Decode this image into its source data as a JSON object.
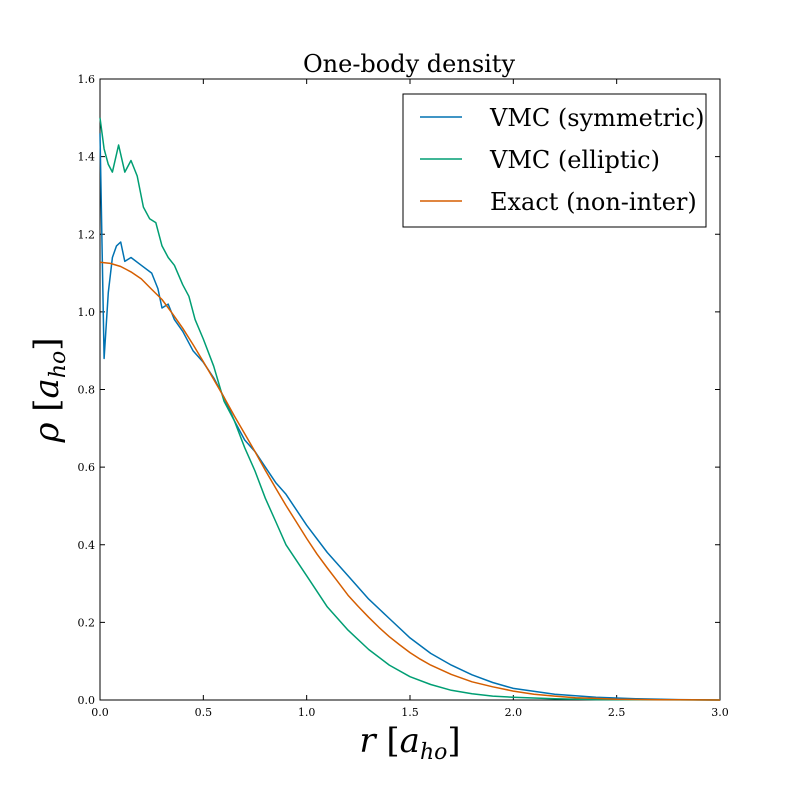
{
  "chart_data": {
    "type": "line",
    "title": "One-body density",
    "xlabel": "r [a_ho]",
    "ylabel": "ρ [a_ho]",
    "xlabel_parts": {
      "var": "r",
      "open": "[",
      "base": "a",
      "sub": "ho",
      "close": "]"
    },
    "ylabel_parts": {
      "var": "ρ",
      "open": "[",
      "base": "a",
      "sub": "ho",
      "close": "]"
    },
    "xlim": [
      0.0,
      3.0
    ],
    "ylim": [
      0.0,
      1.6
    ],
    "xticks": [
      "0.0",
      "0.5",
      "1.0",
      "1.5",
      "2.0",
      "2.5",
      "3.0"
    ],
    "yticks": [
      "0.0",
      "0.2",
      "0.4",
      "0.6",
      "0.8",
      "1.0",
      "1.2",
      "1.4",
      "1.6"
    ],
    "grid": false,
    "legend_position": "top-right",
    "series": [
      {
        "name": "VMC (symmetric)",
        "color": "#0072b2",
        "x": [
          0.0,
          0.02,
          0.04,
          0.06,
          0.08,
          0.1,
          0.12,
          0.15,
          0.2,
          0.25,
          0.28,
          0.3,
          0.33,
          0.36,
          0.4,
          0.45,
          0.5,
          0.55,
          0.6,
          0.65,
          0.7,
          0.75,
          0.8,
          0.85,
          0.9,
          1.0,
          1.1,
          1.2,
          1.3,
          1.4,
          1.5,
          1.6,
          1.7,
          1.8,
          1.9,
          2.0,
          2.2,
          2.4,
          2.6,
          2.8,
          3.0
        ],
        "y": [
          1.46,
          0.88,
          1.05,
          1.14,
          1.17,
          1.18,
          1.13,
          1.14,
          1.12,
          1.1,
          1.06,
          1.01,
          1.02,
          0.98,
          0.95,
          0.9,
          0.87,
          0.83,
          0.78,
          0.72,
          0.67,
          0.64,
          0.6,
          0.56,
          0.53,
          0.45,
          0.38,
          0.32,
          0.26,
          0.21,
          0.16,
          0.12,
          0.09,
          0.065,
          0.045,
          0.03,
          0.015,
          0.007,
          0.003,
          0.001,
          0.0
        ]
      },
      {
        "name": "VMC (elliptic)",
        "color": "#009e73",
        "x": [
          0.0,
          0.02,
          0.04,
          0.06,
          0.09,
          0.12,
          0.15,
          0.18,
          0.21,
          0.24,
          0.27,
          0.3,
          0.33,
          0.36,
          0.4,
          0.43,
          0.46,
          0.5,
          0.55,
          0.6,
          0.65,
          0.7,
          0.75,
          0.8,
          0.85,
          0.9,
          1.0,
          1.1,
          1.2,
          1.3,
          1.4,
          1.5,
          1.6,
          1.7,
          1.8,
          1.9,
          2.0,
          2.2,
          2.4,
          2.6,
          2.8,
          3.0
        ],
        "y": [
          1.5,
          1.42,
          1.38,
          1.36,
          1.43,
          1.36,
          1.39,
          1.35,
          1.27,
          1.24,
          1.23,
          1.17,
          1.14,
          1.12,
          1.07,
          1.04,
          0.98,
          0.93,
          0.86,
          0.77,
          0.72,
          0.65,
          0.59,
          0.52,
          0.46,
          0.4,
          0.32,
          0.24,
          0.18,
          0.13,
          0.09,
          0.06,
          0.04,
          0.025,
          0.016,
          0.01,
          0.007,
          0.003,
          0.001,
          0.0005,
          0.0002,
          0.0
        ]
      },
      {
        "name": "Exact (non-inter)",
        "color": "#d55e00",
        "formula_note": "",
        "x": [
          0.0,
          0.05,
          0.1,
          0.15,
          0.2,
          0.25,
          0.3,
          0.35,
          0.4,
          0.45,
          0.5,
          0.55,
          0.6,
          0.65,
          0.7,
          0.75,
          0.8,
          0.85,
          0.9,
          0.95,
          1.0,
          1.05,
          1.1,
          1.15,
          1.2,
          1.25,
          1.3,
          1.35,
          1.4,
          1.45,
          1.5,
          1.55,
          1.6,
          1.7,
          1.8,
          1.9,
          2.0,
          2.1,
          2.2,
          2.3,
          2.4,
          2.5,
          2.6,
          2.7,
          2.8,
          2.9,
          3.0
        ],
        "y": [
          1.128,
          1.125,
          1.117,
          1.103,
          1.085,
          1.058,
          1.032,
          0.996,
          0.958,
          0.916,
          0.872,
          0.826,
          0.78,
          0.732,
          0.686,
          0.64,
          0.592,
          0.546,
          0.501,
          0.459,
          0.416,
          0.376,
          0.34,
          0.305,
          0.27,
          0.241,
          0.213,
          0.187,
          0.163,
          0.142,
          0.122,
          0.105,
          0.09,
          0.066,
          0.047,
          0.034,
          0.023,
          0.015,
          0.01,
          0.006,
          0.004,
          0.002,
          0.0013,
          0.0008,
          0.0004,
          0.0002,
          0.0001
        ]
      }
    ]
  }
}
